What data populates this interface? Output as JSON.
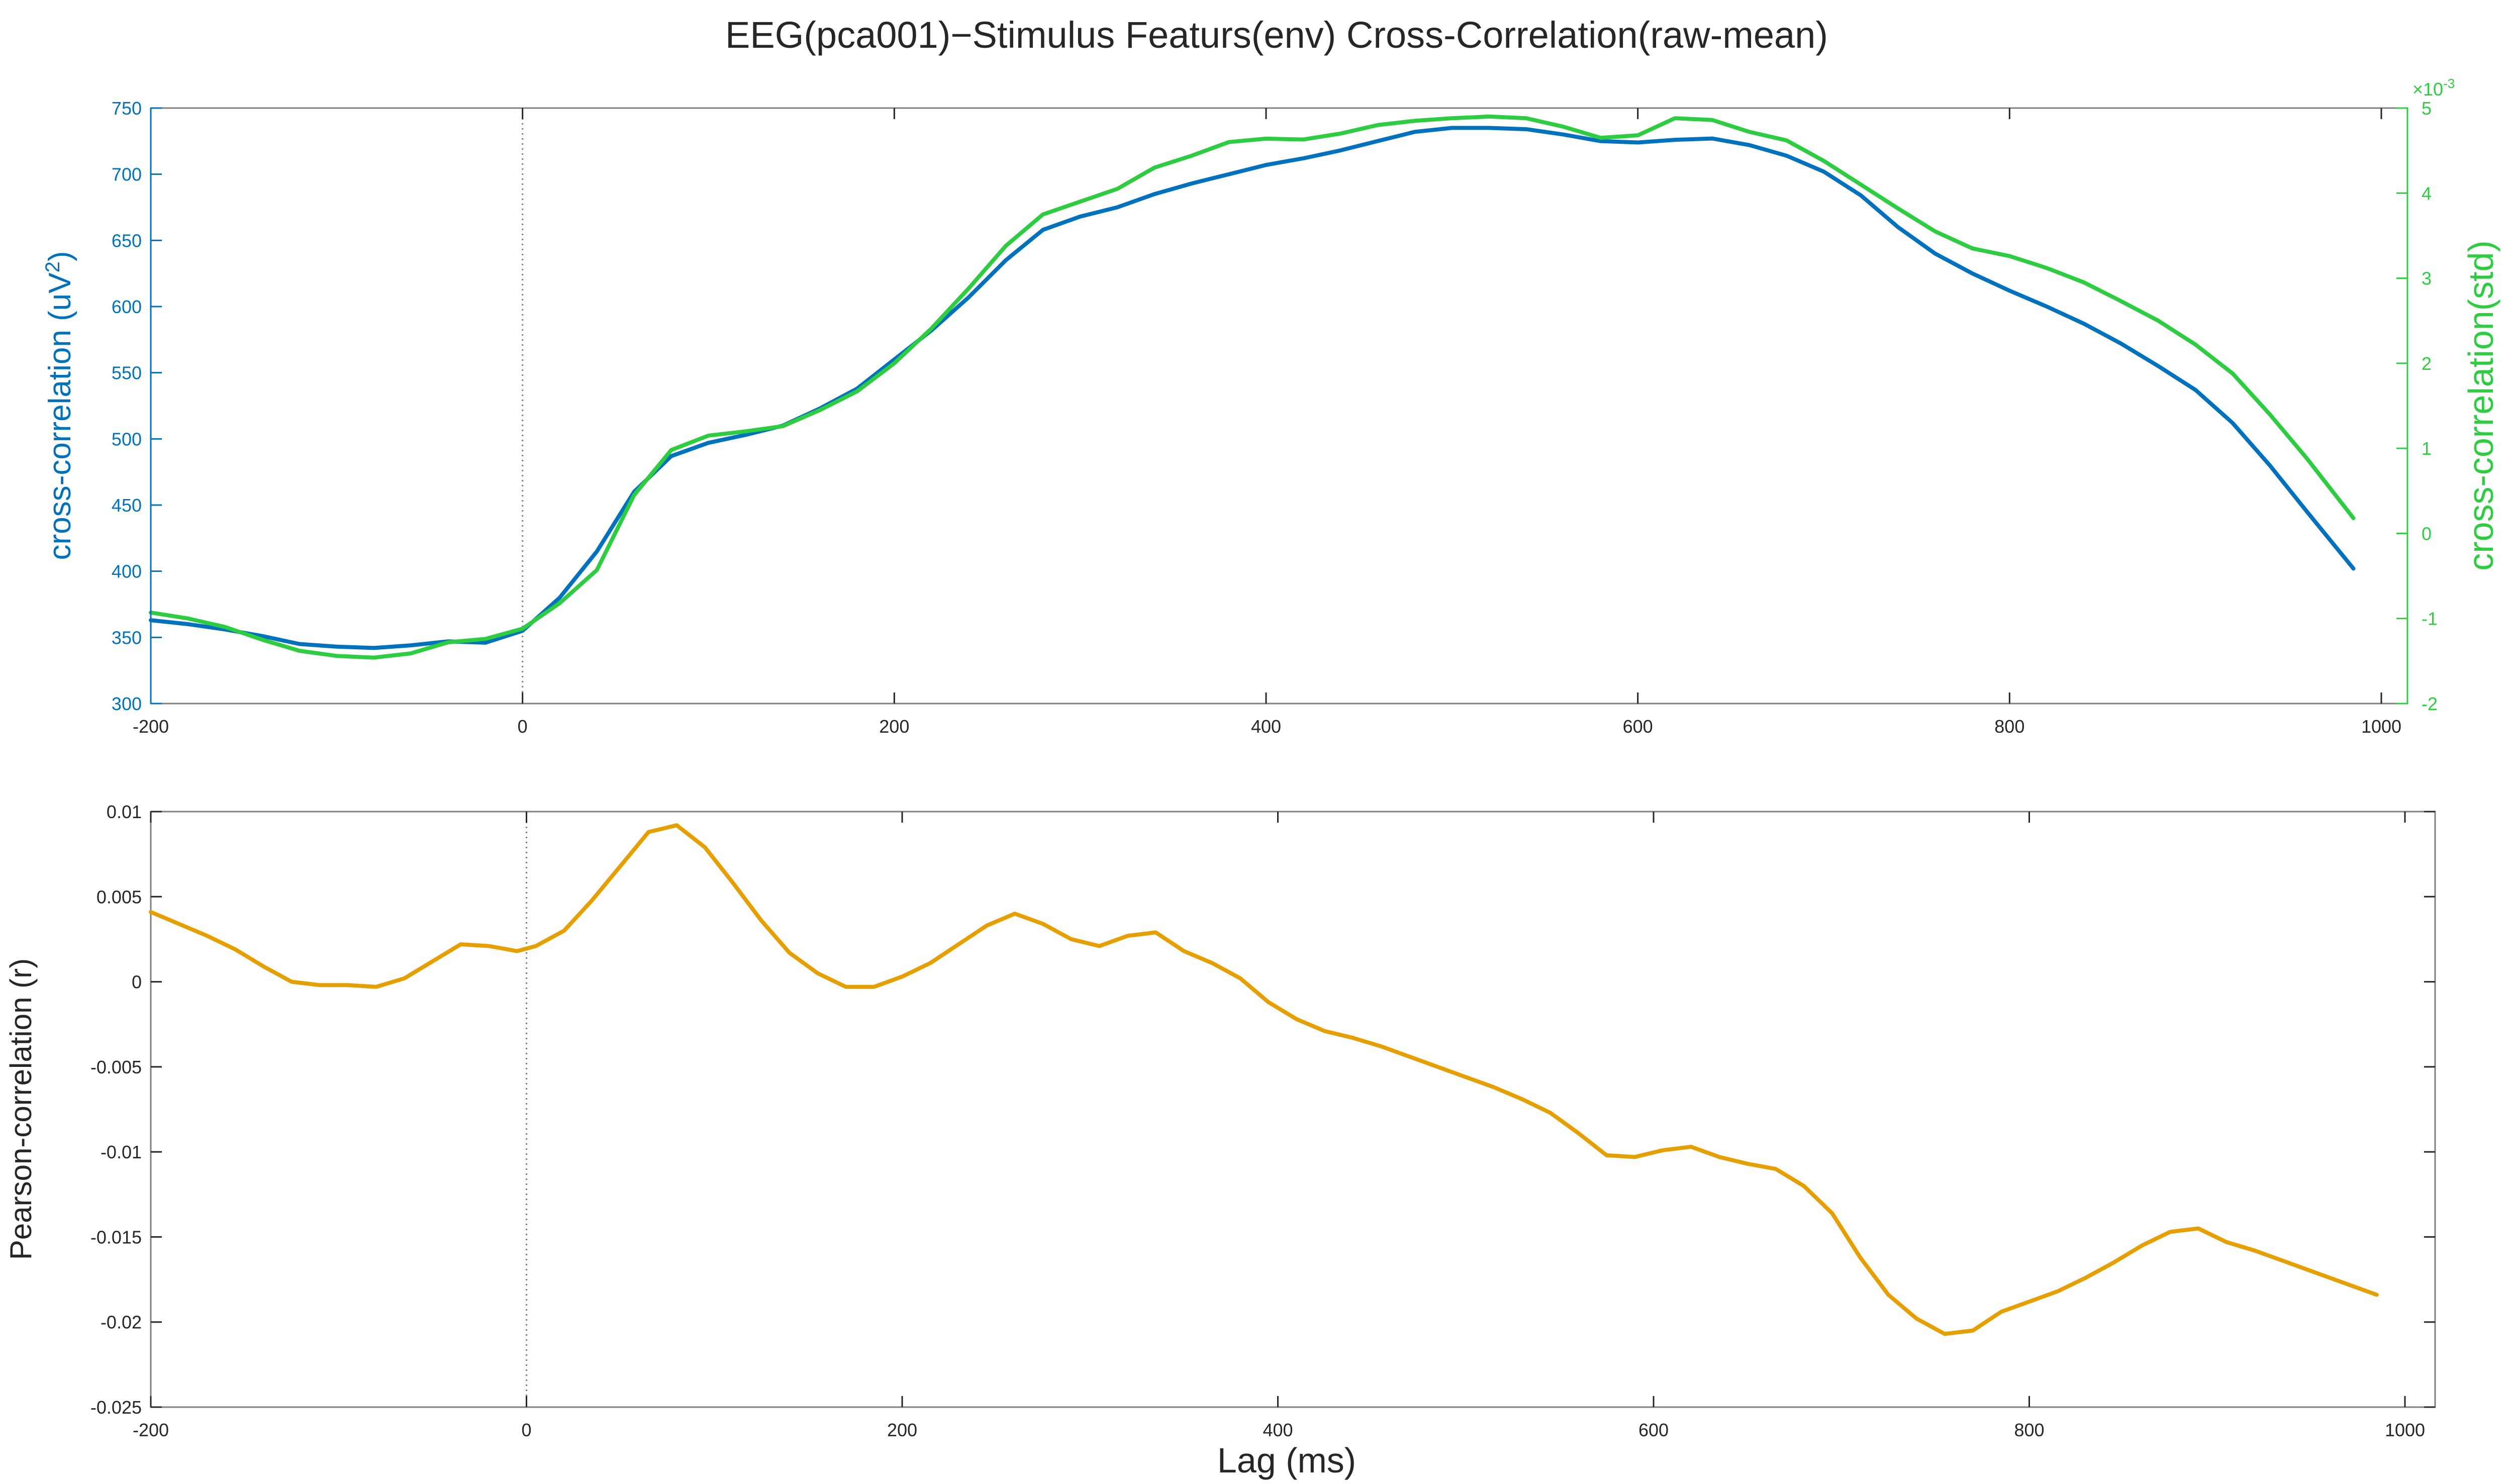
{
  "figure": {
    "title": "EEG(pca001)−Stimulus Featurs(env) Cross-Correlation(raw-mean)",
    "xlabel": "Lag (ms)"
  },
  "colors": {
    "blue": "#0072BD",
    "green": "#2ECC40",
    "orange": "#E69F00",
    "axis": "#262626",
    "box": "#808080",
    "zero_line": "#808080"
  },
  "chart_data": [
    {
      "type": "line",
      "panel": "top",
      "title": "",
      "xlabel": "",
      "x_ticks": [
        "-200",
        "0",
        "200",
        "400",
        "600",
        "800",
        "1000"
      ],
      "xlim": [
        -200,
        1000
      ],
      "grid": false,
      "legend": "none",
      "reference_line": {
        "x": 0,
        "style": "dotted"
      },
      "y_left": {
        "label": "cross-correlation (uV",
        "label_sup": "2",
        "label_end": ")",
        "ylim": [
          300,
          750
        ],
        "ticks": [
          "300",
          "350",
          "400",
          "450",
          "500",
          "550",
          "600",
          "650",
          "700",
          "750"
        ]
      },
      "y_right": {
        "label": "cross-correlation(std)",
        "exponent_base": "×10",
        "exponent": "-3",
        "ylim": [
          -2,
          5
        ],
        "ticks": [
          "-2",
          "-1",
          "0",
          "1",
          "2",
          "3",
          "4",
          "5"
        ]
      },
      "series": [
        {
          "axis": "left",
          "color": "blue",
          "x": [
            -200,
            -180,
            -160,
            -140,
            -120,
            -100,
            -80,
            -60,
            -40,
            -20,
            0,
            20,
            40,
            60,
            80,
            100,
            120,
            140,
            160,
            180,
            200,
            220,
            240,
            260,
            280,
            300,
            320,
            340,
            360,
            380,
            400,
            420,
            440,
            460,
            480,
            500,
            520,
            540,
            560,
            580,
            600,
            620,
            640,
            660,
            680,
            700,
            720,
            740,
            760,
            780,
            800,
            820,
            840,
            860,
            880,
            900,
            920,
            940,
            960,
            985
          ],
          "values": [
            363,
            360,
            356,
            351,
            345,
            343,
            342,
            344,
            347,
            346,
            355,
            380,
            415,
            460,
            487,
            497,
            503,
            510,
            523,
            538,
            560,
            582,
            607,
            635,
            658,
            668,
            675,
            685,
            693,
            700,
            707,
            712,
            718,
            725,
            732,
            735,
            735,
            734,
            730,
            725,
            724,
            726,
            727,
            722,
            714,
            702,
            684,
            660,
            640,
            625,
            612,
            600,
            587,
            572,
            555,
            537,
            512,
            480,
            445,
            402
          ]
        },
        {
          "axis": "right",
          "color": "green",
          "x": [
            -200,
            -180,
            -160,
            -140,
            -120,
            -100,
            -80,
            -60,
            -40,
            -20,
            0,
            20,
            40,
            60,
            80,
            100,
            120,
            140,
            160,
            180,
            200,
            220,
            240,
            260,
            280,
            300,
            320,
            340,
            360,
            380,
            400,
            420,
            440,
            460,
            480,
            500,
            520,
            540,
            560,
            580,
            600,
            620,
            640,
            660,
            680,
            700,
            720,
            740,
            760,
            780,
            800,
            820,
            840,
            860,
            880,
            900,
            920,
            940,
            960,
            985
          ],
          "values": [
            -0.93,
            -1.0,
            -1.1,
            -1.25,
            -1.38,
            -1.44,
            -1.46,
            -1.41,
            -1.28,
            -1.24,
            -1.12,
            -0.82,
            -0.43,
            0.45,
            0.98,
            1.15,
            1.2,
            1.26,
            1.45,
            1.67,
            2.0,
            2.41,
            2.88,
            3.38,
            3.75,
            3.9,
            4.05,
            4.3,
            4.44,
            4.6,
            4.64,
            4.63,
            4.7,
            4.8,
            4.85,
            4.88,
            4.9,
            4.88,
            4.78,
            4.65,
            4.68,
            4.88,
            4.86,
            4.72,
            4.62,
            4.38,
            4.1,
            3.82,
            3.55,
            3.35,
            3.26,
            3.12,
            2.95,
            2.73,
            2.5,
            2.22,
            1.88,
            1.4,
            0.88,
            0.18
          ]
        }
      ]
    },
    {
      "type": "line",
      "panel": "bottom",
      "title": "",
      "xlabel": "Lag (ms)",
      "ylabel": "Pearson-correlation (r)",
      "x_ticks": [
        "-200",
        "0",
        "200",
        "400",
        "600",
        "800",
        "1000"
      ],
      "xlim": [
        -200,
        1000
      ],
      "ylim": [
        -0.025,
        0.01
      ],
      "y_ticks": [
        "-0.025",
        "-0.02",
        "-0.015",
        "-0.01",
        "-0.005",
        "0",
        "0.005",
        "0.01"
      ],
      "grid": false,
      "legend": "none",
      "reference_line": {
        "x": 0,
        "style": "dotted"
      },
      "series": [
        {
          "color": "orange",
          "x": [
            -200,
            -185,
            -170,
            -155,
            -140,
            -125,
            -110,
            -95,
            -80,
            -65,
            -50,
            -35,
            -20,
            -5,
            5,
            20,
            35,
            50,
            65,
            80,
            95,
            110,
            125,
            140,
            155,
            170,
            185,
            200,
            215,
            230,
            245,
            260,
            275,
            290,
            305,
            320,
            335,
            350,
            365,
            380,
            395,
            410,
            425,
            440,
            455,
            470,
            485,
            500,
            515,
            530,
            545,
            560,
            575,
            590,
            605,
            620,
            635,
            650,
            665,
            680,
            695,
            710,
            725,
            740,
            755,
            770,
            785,
            800,
            815,
            830,
            845,
            860,
            875,
            890,
            905,
            920,
            935,
            950,
            965,
            985
          ],
          "values": [
            0.0041,
            0.0034,
            0.0027,
            0.0019,
            0.0009,
            0.0,
            -0.0002,
            -0.0002,
            -0.0003,
            0.0002,
            0.0012,
            0.0022,
            0.0021,
            0.0018,
            0.0021,
            0.003,
            0.0048,
            0.0068,
            0.0088,
            0.0092,
            0.0079,
            0.0058,
            0.0036,
            0.0017,
            0.0005,
            -0.0003,
            -0.0003,
            0.0003,
            0.0011,
            0.0022,
            0.0033,
            0.004,
            0.0034,
            0.0025,
            0.0021,
            0.0027,
            0.0029,
            0.0018,
            0.0011,
            0.0002,
            -0.0012,
            -0.0022,
            -0.0029,
            -0.0033,
            -0.0038,
            -0.0044,
            -0.005,
            -0.0056,
            -0.0062,
            -0.0069,
            -0.0077,
            -0.0089,
            -0.0102,
            -0.0103,
            -0.0099,
            -0.0097,
            -0.0103,
            -0.0107,
            -0.011,
            -0.012,
            -0.0136,
            -0.0162,
            -0.0184,
            -0.0198,
            -0.0207,
            -0.0205,
            -0.0194,
            -0.0188,
            -0.0182,
            -0.0174,
            -0.0165,
            -0.0155,
            -0.0147,
            -0.0145,
            -0.0153,
            -0.0158,
            -0.0164,
            -0.017,
            -0.0176,
            -0.0184
          ]
        }
      ]
    }
  ]
}
